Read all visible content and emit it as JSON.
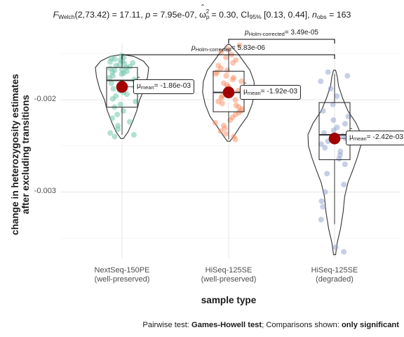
{
  "title": {
    "stat": "F",
    "stat_sub": "Welch",
    "stat_args": "(2,73.42) = 17.11,",
    "p_label": "p",
    "p_value": "= 7.95e-07,",
    "omega_sym": "ω",
    "omega_sub": "p",
    "omega_sup": "2",
    "omega_value": "= 0.30,",
    "ci_label": "CI",
    "ci_sub": "95%",
    "ci_value": "[0.13, 0.44],",
    "n_label": "n",
    "n_sub": "obs",
    "n_value": "= 163"
  },
  "caption": {
    "prefix": "Pairwise test: ",
    "test": "Games-Howell test",
    "middle": "; Comparisons shown: ",
    "shown": "only significant"
  },
  "chart_data": {
    "type": "violin-box-scatter",
    "xlabel": "sample type",
    "ylabel": [
      "change in heterozygosity estimates",
      "after excluding transitions"
    ],
    "ylim": [
      -0.00372,
      -0.00139
    ],
    "yticks": [
      -0.003,
      -0.002
    ],
    "ytick_labels": [
      "-0.003",
      "-0.002"
    ],
    "grid": true,
    "categories": [
      {
        "label": [
          "NextSeq-150PE",
          "(well-preserved)"
        ],
        "color": "#66c2a5",
        "mean": -0.00186,
        "mean_label_mu": "μ",
        "mean_label_sub": "mean",
        "mean_label_value": "= -1.86e-03",
        "box": {
          "q1": -0.00208,
          "median": -0.00179,
          "q3": -0.00165,
          "lower": -0.00238,
          "upper": -0.00155
        },
        "violin": {
          "min": -0.00242,
          "max": -0.00151,
          "profile": [
            [
              -0.00242,
              0.05
            ],
            [
              -0.00235,
              0.22
            ],
            [
              -0.00225,
              0.38
            ],
            [
              -0.00212,
              0.55
            ],
            [
              -0.002,
              0.66
            ],
            [
              -0.00188,
              0.84
            ],
            [
              -0.00175,
              0.96
            ],
            [
              -0.00165,
              1.0
            ],
            [
              -0.00158,
              0.8
            ],
            [
              -0.00153,
              0.45
            ],
            [
              -0.00151,
              0.05
            ]
          ]
        },
        "points": [
          -0.00152,
          -0.00154,
          -0.00155,
          -0.00156,
          -0.00157,
          -0.00158,
          -0.00159,
          -0.0016,
          -0.00161,
          -0.00162,
          -0.00163,
          -0.00164,
          -0.00165,
          -0.00166,
          -0.00167,
          -0.00168,
          -0.00169,
          -0.0017,
          -0.00171,
          -0.00172,
          -0.00174,
          -0.00176,
          -0.00178,
          -0.0018,
          -0.00182,
          -0.00184,
          -0.00186,
          -0.00188,
          -0.0019,
          -0.00192,
          -0.00194,
          -0.00196,
          -0.00199,
          -0.00202,
          -0.00205,
          -0.00208,
          -0.00212,
          -0.00216,
          -0.0022,
          -0.00224,
          -0.00228,
          -0.00232,
          -0.00236,
          -0.00238,
          -0.0024
        ]
      },
      {
        "label": [
          "HiSeq-125SE",
          "(well-preserved)"
        ],
        "color": "#fc8d62",
        "mean": -0.00192,
        "mean_label_mu": "μ",
        "mean_label_sub": "mean",
        "mean_label_value": "= -1.92e-03",
        "box": {
          "q1": -0.00213,
          "median": -0.00192,
          "q3": -0.00169,
          "lower": -0.00243,
          "upper": -0.00145
        },
        "violin": {
          "min": -0.00245,
          "max": -0.0014,
          "profile": [
            [
              -0.00245,
              0.05
            ],
            [
              -0.00237,
              0.25
            ],
            [
              -0.00228,
              0.45
            ],
            [
              -0.00218,
              0.7
            ],
            [
              -0.00205,
              0.88
            ],
            [
              -0.00192,
              0.98
            ],
            [
              -0.0018,
              0.95
            ],
            [
              -0.00168,
              0.8
            ],
            [
              -0.00158,
              0.55
            ],
            [
              -0.0015,
              0.35
            ],
            [
              -0.00144,
              0.16
            ],
            [
              -0.0014,
              0.04
            ]
          ]
        },
        "points": [
          -0.00141,
          -0.00145,
          -0.00148,
          -0.00151,
          -0.00154,
          -0.00157,
          -0.0016,
          -0.00163,
          -0.00166,
          -0.00168,
          -0.0017,
          -0.00172,
          -0.00174,
          -0.00176,
          -0.00178,
          -0.0018,
          -0.00182,
          -0.00184,
          -0.00186,
          -0.00188,
          -0.0019,
          -0.00192,
          -0.00194,
          -0.00196,
          -0.00198,
          -0.002,
          -0.00202,
          -0.00204,
          -0.00206,
          -0.00208,
          -0.0021,
          -0.00212,
          -0.00214,
          -0.00216,
          -0.00219,
          -0.00222,
          -0.00225,
          -0.00228,
          -0.00231,
          -0.00234,
          -0.00237,
          -0.0024,
          -0.00243
        ]
      },
      {
        "label": [
          "HiSeq-125SE",
          "(degraded)"
        ],
        "color": "#8da0cb",
        "mean": -0.00242,
        "mean_label_mu": "μ",
        "mean_label_sub": "mean",
        "mean_label_value": "= -2.42e-03",
        "box": {
          "q1": -0.00265,
          "median": -0.00238,
          "q3": -0.00203,
          "lower": -0.00335,
          "upper": -0.00172
        },
        "violin": {
          "min": -0.00368,
          "max": -0.00168,
          "profile": [
            [
              -0.00368,
              0.04
            ],
            [
              -0.00355,
              0.1
            ],
            [
              -0.0034,
              0.22
            ],
            [
              -0.00322,
              0.32
            ],
            [
              -0.00305,
              0.38
            ],
            [
              -0.0029,
              0.5
            ],
            [
              -0.00275,
              0.7
            ],
            [
              -0.00262,
              0.86
            ],
            [
              -0.0025,
              0.98
            ],
            [
              -0.00238,
              1.0
            ],
            [
              -0.00225,
              0.8
            ],
            [
              -0.00212,
              0.5
            ],
            [
              -0.00198,
              0.3
            ],
            [
              -0.00185,
              0.15
            ],
            [
              -0.00175,
              0.1
            ],
            [
              -0.00168,
              0.04
            ]
          ]
        },
        "points": [
          -0.0017,
          -0.00174,
          -0.0018,
          -0.00188,
          -0.00196,
          -0.00205,
          -0.00212,
          -0.00218,
          -0.00222,
          -0.00226,
          -0.0023,
          -0.00233,
          -0.00236,
          -0.00239,
          -0.00242,
          -0.00245,
          -0.00248,
          -0.00252,
          -0.00256,
          -0.0026,
          -0.00264,
          -0.0027,
          -0.0028,
          -0.00292,
          -0.003,
          -0.0031,
          -0.00316,
          -0.0033,
          -0.0036,
          -0.00365
        ]
      }
    ],
    "comparisons": [
      {
        "from": 0,
        "to": 2,
        "p_label": "p",
        "p_sub": "Holm-corrected",
        "p_value": "= 5.83e-06"
      },
      {
        "from": 1,
        "to": 2,
        "p_label": "p",
        "p_sub": "Holm-corrected",
        "p_value": "= 3.49e-05"
      }
    ]
  }
}
